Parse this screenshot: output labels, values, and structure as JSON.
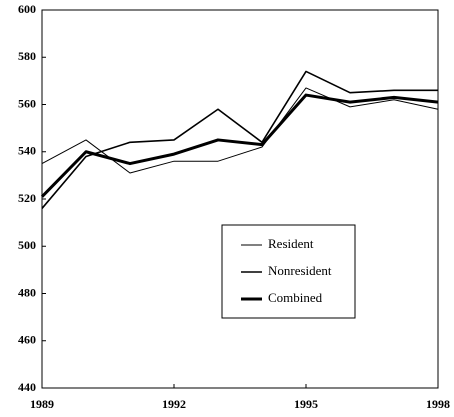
{
  "chart_data": {
    "type": "line",
    "x": [
      1989,
      1990,
      1991,
      1992,
      1993,
      1994,
      1995,
      1996,
      1997,
      1998
    ],
    "series": [
      {
        "name": "Resident",
        "color": "#000000",
        "line_width": 1,
        "values": [
          535,
          545,
          531,
          536,
          536,
          542,
          567,
          559,
          562,
          558
        ]
      },
      {
        "name": "Nonresident",
        "color": "#000000",
        "line_width": 1.6,
        "values": [
          516,
          538,
          544,
          545,
          558,
          544,
          574,
          565,
          566,
          566
        ]
      },
      {
        "name": "Combined",
        "color": "#000000",
        "line_width": 3,
        "values": [
          521,
          540,
          535,
          539,
          545,
          543,
          564,
          561,
          563,
          561
        ]
      }
    ],
    "xlim": [
      1989,
      1998
    ],
    "xticks": [
      1989,
      1992,
      1995,
      1998
    ],
    "ylim": [
      440,
      600
    ],
    "yticks": [
      440,
      460,
      480,
      500,
      520,
      540,
      560,
      580,
      600
    ],
    "grid": false
  }
}
